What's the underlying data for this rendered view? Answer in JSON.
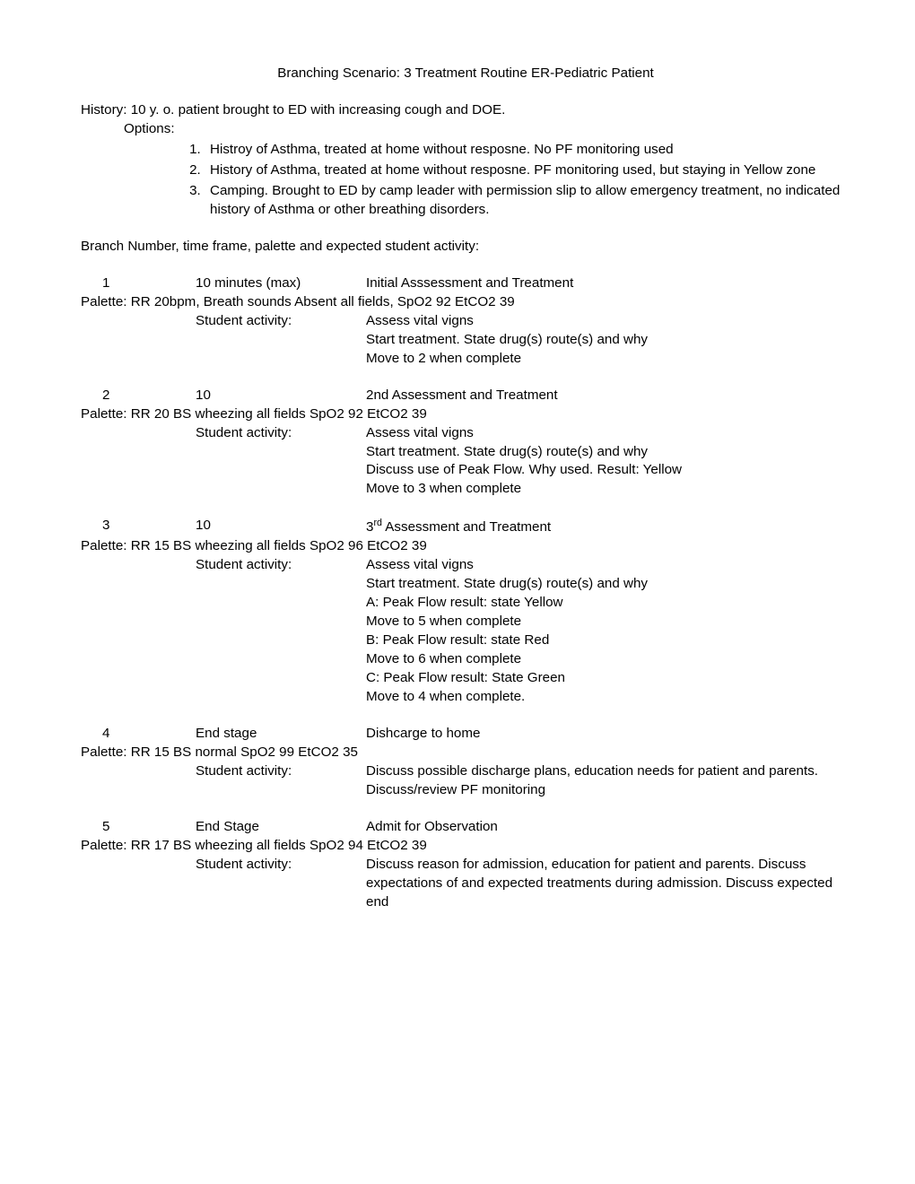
{
  "title": "Branching Scenario: 3 Treatment Routine ER-Pediatric Patient",
  "history_line": "History: 10 y. o. patient brought to ED with increasing cough and DOE.",
  "options_label": "Options:",
  "options": [
    "Histroy of Asthma, treated at home without resposne.  No PF monitoring used",
    "History of Asthma, treated at home without resposne.  PF monitoring used, but staying in Yellow zone",
    "Camping.  Brought to ED by camp leader with permission slip to allow emergency treatment, no indicated history of Asthma or other breathing disorders."
  ],
  "branch_intro": "Branch Number, time frame, palette and expected student activity:",
  "branches": {
    "b1": {
      "num": "1",
      "time": "10 minutes (max)",
      "title": "Initial Asssessment and Treatment",
      "palette": "Palette: RR 20bpm, Breath sounds Absent all fields, SpO2 92  EtCO2 39",
      "student_label": "Student activity:",
      "activities": [
        "Assess vital vigns",
        "Start treatment.  State drug(s) route(s) and why",
        "Move to 2 when complete"
      ]
    },
    "b2": {
      "num": "2",
      "time": "10",
      "title": "2nd Assessment and Treatment",
      "palette": "Palette:  RR 20  BS wheezing all fields SpO2 92 EtCO2 39",
      "student_label": "Student activity:",
      "activities": [
        "Assess vital vigns",
        "Start treatment.  State drug(s) route(s) and why",
        "Discuss use of Peak Flow.  Why used.  Result: Yellow",
        "Move to 3 when complete"
      ]
    },
    "b3": {
      "num": "3",
      "time": "10",
      "title_pre": "3",
      "title_sup": "rd",
      "title_post": " Assessment and Treatment",
      "palette": "Palette:  RR 15  BS wheezing all fields  SpO2 96  EtCO2 39",
      "student_label": "Student activity:",
      "activities": [
        "Assess vital vigns",
        "Start treatment.  State drug(s) route(s) and why",
        "A: Peak Flow result: state Yellow",
        "Move to 5 when complete",
        "B: Peak Flow result: state Red",
        "Move to 6 when complete",
        "C: Peak Flow result: State Green",
        "Move to 4 when complete."
      ]
    },
    "b4": {
      "num": "4",
      "time": "End stage",
      "title": "Dishcarge to home",
      "palette": "Palette: RR 15  BS normal  SpO2 99  EtCO2 35",
      "student_label": "Student activity:",
      "activities": [
        "Discuss possible discharge plans, education needs for patient and parents.",
        "Discuss/review PF monitoring"
      ]
    },
    "b5": {
      "num": "5",
      "time": "End Stage",
      "title": "Admit for Observation",
      "palette": "Palette: RR 17  BS wheezing all fields  SpO2 94  EtCO2 39",
      "student_label": "Student activity:",
      "activities": [
        "Discuss reason for admission, education for patient and parents.  Discuss expectations of and expected treatments during admission.  Discuss expected end"
      ]
    }
  }
}
